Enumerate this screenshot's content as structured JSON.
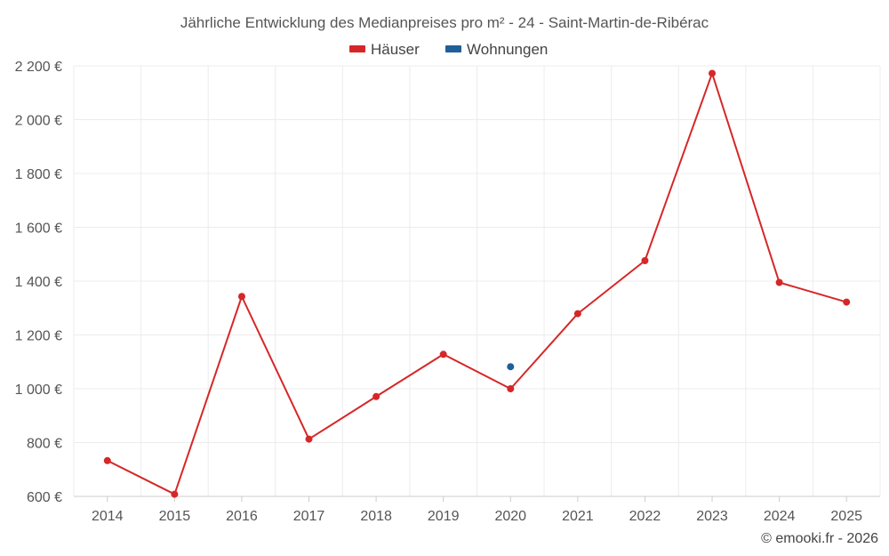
{
  "chart_data": {
    "type": "line",
    "title": "Jährliche Entwicklung des Medianpreises pro m² - 24 - Saint-Martin-de-Ribérac",
    "xlabel": "",
    "ylabel": "",
    "categories": [
      "2014",
      "2015",
      "2016",
      "2017",
      "2018",
      "2019",
      "2020",
      "2021",
      "2022",
      "2023",
      "2024",
      "2025"
    ],
    "ylim": [
      600,
      2200
    ],
    "yticks": [
      600,
      800,
      1000,
      1200,
      1400,
      1600,
      1800,
      2000,
      2200
    ],
    "ytick_labels": [
      "600 €",
      "800 €",
      "1 000 €",
      "1 200 €",
      "1 400 €",
      "1 600 €",
      "1 800 €",
      "2 000 €",
      "2 200 €"
    ],
    "grid": true,
    "legend": "top-center",
    "series": [
      {
        "name": "Häuser",
        "color": "#d62728",
        "values": [
          733,
          608,
          1343,
          813,
          971,
          1128,
          1000,
          1279,
          1476,
          2172,
          1395,
          1322
        ]
      },
      {
        "name": "Wohnungen",
        "color": "#1f5f9a",
        "values": [
          null,
          null,
          null,
          null,
          null,
          null,
          1082,
          null,
          null,
          null,
          null,
          null
        ]
      }
    ]
  },
  "credit": "© emooki.fr - 2026"
}
